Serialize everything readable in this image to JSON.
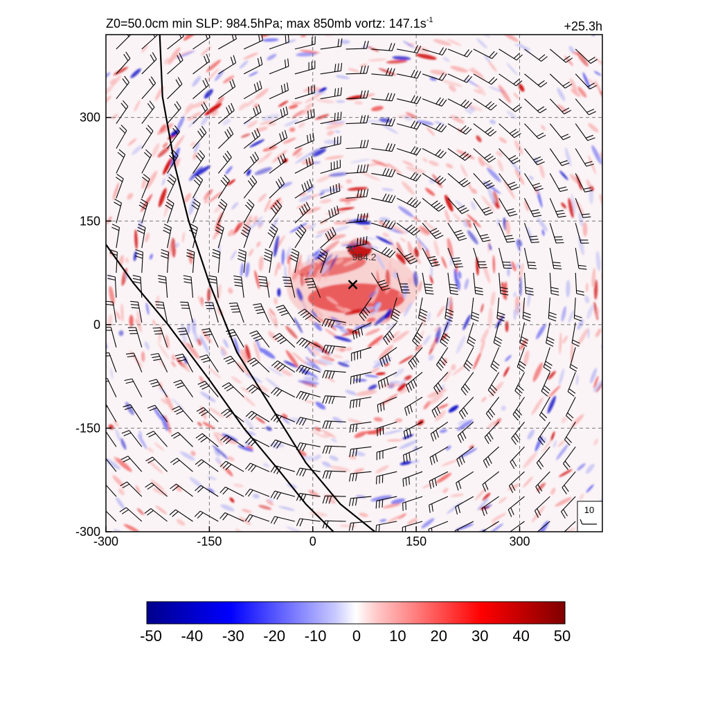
{
  "chart_data": {
    "type": "heatmap",
    "title_left": "Z0=50.0cm  min SLP: 984.5hPa; max 850mb vortz: 147.1s",
    "title_sup": "-1",
    "title_right": "+25.3h",
    "xlim": [
      -300,
      420
    ],
    "ylim": [
      -300,
      420
    ],
    "x_ticks": [
      "-300",
      "-150",
      "0",
      "150",
      "300"
    ],
    "y_ticks": [
      "300",
      "150",
      "0",
      "-150",
      "-300"
    ],
    "x_tick_values": [
      -300,
      -150,
      0,
      150,
      300
    ],
    "y_tick_values": [
      300,
      150,
      0,
      -150,
      -300
    ],
    "grid": "dashed",
    "colorbar": {
      "range": [
        -50,
        50
      ],
      "tick_labels": [
        "-50",
        "-40",
        "-30",
        "-20",
        "-10",
        "0",
        "10",
        "20",
        "30",
        "40",
        "50"
      ],
      "tick_values": [
        -50,
        -40,
        -30,
        -20,
        -10,
        0,
        10,
        20,
        30,
        40,
        50
      ],
      "low_color": "#00008b",
      "mid_color": "#ffffff",
      "high_color": "#7f0000"
    },
    "storm_center": {
      "x": 58,
      "y": 58,
      "marker": "x"
    },
    "pressure_annotation": {
      "x": 55,
      "y": 110,
      "label": "984.2"
    },
    "reference_barb_label": "10",
    "coastlines": [
      [
        [
          -222,
          420
        ],
        [
          -218,
          330
        ],
        [
          -200,
          230
        ],
        [
          -180,
          150
        ],
        [
          -150,
          60
        ],
        [
          -110,
          -40
        ],
        [
          -60,
          -120
        ],
        [
          -10,
          -200
        ],
        [
          40,
          -260
        ],
        [
          90,
          -300
        ]
      ],
      [
        [
          -300,
          116
        ],
        [
          -260,
          60
        ],
        [
          -210,
          0
        ],
        [
          -150,
          -80
        ],
        [
          -100,
          -150
        ],
        [
          -50,
          -210
        ],
        [
          -10,
          -260
        ],
        [
          30,
          -300
        ]
      ]
    ]
  }
}
